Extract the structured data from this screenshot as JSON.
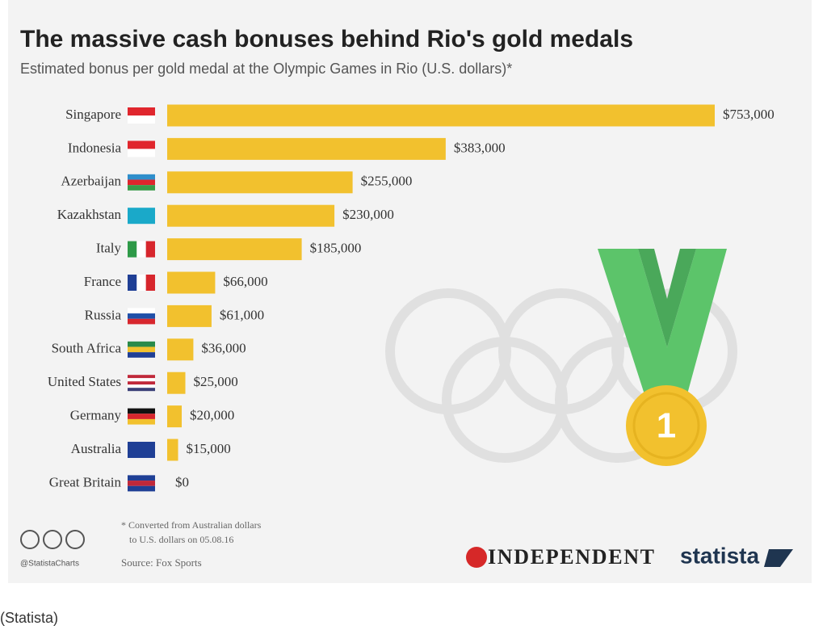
{
  "chart_data": {
    "type": "bar",
    "orientation": "horizontal",
    "title": "The massive cash bonuses behind Rio's gold medals",
    "subtitle": "Estimated bonus per gold medal at the Olympic Games in Rio (U.S. dollars)*",
    "categories": [
      "Singapore",
      "Indonesia",
      "Azerbaijan",
      "Kazakhstan",
      "Italy",
      "France",
      "Russia",
      "South Africa",
      "United States",
      "Germany",
      "Australia",
      "Great Britain"
    ],
    "values": [
      753000,
      383000,
      255000,
      230000,
      185000,
      66000,
      61000,
      36000,
      25000,
      20000,
      15000,
      0
    ],
    "value_labels": [
      "$753,000",
      "$383,000",
      "$255,000",
      "$230,000",
      "$185,000",
      "$66,000",
      "$61,000",
      "$36,000",
      "$25,000",
      "$20,000",
      "$15,000",
      "$0"
    ],
    "color": "#f2c12e",
    "medal_label": "1",
    "footnote": [
      "* Converted from Australian dollars",
      "to U.S. dollars on 05.08.16"
    ],
    "handle": "@StatistaCharts",
    "source": "Source: Fox Sports"
  },
  "branding": {
    "publisher": "INDEPENDENT",
    "brand": "statista"
  },
  "caption": "(Statista)"
}
